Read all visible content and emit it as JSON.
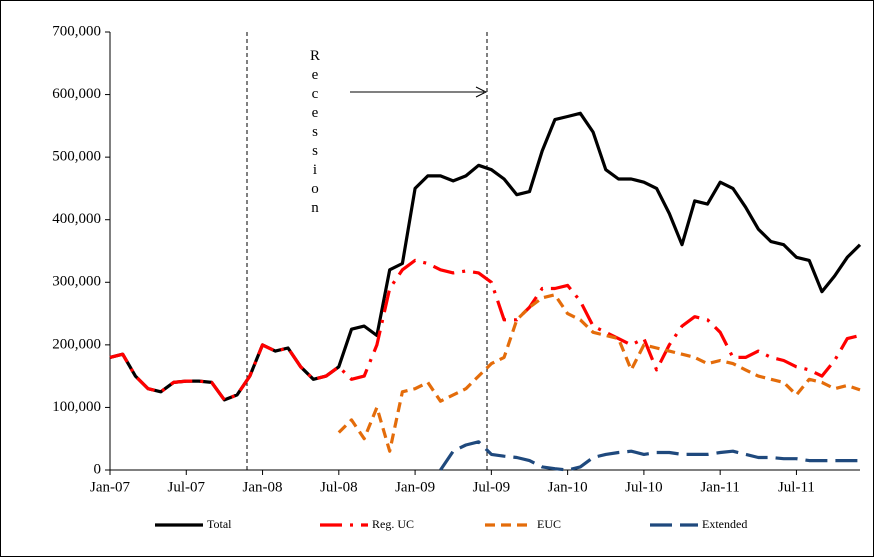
{
  "chart_data": {
    "type": "line",
    "annotation": "Recession",
    "categories": [
      "Jan-07",
      null,
      null,
      null,
      null,
      null,
      "Jul-07",
      null,
      null,
      null,
      null,
      null,
      "Jan-08",
      null,
      null,
      null,
      null,
      null,
      "Jul-08",
      null,
      null,
      null,
      null,
      null,
      "Jan-09",
      null,
      null,
      null,
      null,
      null,
      "Jul-09",
      null,
      null,
      null,
      null,
      null,
      "Jan-10",
      null,
      null,
      null,
      null,
      null,
      "Jul-10",
      null,
      null,
      null,
      null,
      null,
      "Jan-11",
      null,
      null,
      null,
      null,
      null,
      "Jul-11",
      null,
      null,
      null,
      null,
      null
    ],
    "series": [
      {
        "name": "Total",
        "color": "#000000",
        "dash": "solid",
        "values": [
          180,
          185,
          150,
          130,
          125,
          140,
          142,
          142,
          140,
          112,
          120,
          150,
          200,
          190,
          195,
          165,
          145,
          150,
          165,
          225,
          230,
          215,
          320,
          330,
          450,
          470,
          470,
          462,
          470,
          487,
          480,
          465,
          440,
          445,
          510,
          560,
          565,
          570,
          540,
          480,
          465,
          465,
          460,
          450,
          410,
          360,
          430,
          425,
          460,
          450,
          420,
          385,
          365,
          360,
          340,
          335,
          285,
          310,
          340,
          360
        ]
      },
      {
        "name": "Reg. UC",
        "color": "#ff0000",
        "dash": "dashdot",
        "values": [
          180,
          185,
          150,
          130,
          125,
          140,
          142,
          142,
          140,
          112,
          120,
          150,
          200,
          190,
          195,
          165,
          145,
          150,
          165,
          145,
          150,
          200,
          290,
          320,
          335,
          330,
          320,
          315,
          318,
          315,
          300,
          240,
          240,
          260,
          290,
          290,
          295,
          270,
          230,
          220,
          210,
          200,
          210,
          160,
          200,
          230,
          245,
          240,
          220,
          180,
          180,
          190,
          180,
          175,
          165,
          160,
          150,
          175,
          210,
          215
        ]
      },
      {
        "name": "EUC",
        "color": "#e46c0a",
        "dash": "dash",
        "values": [
          null,
          null,
          null,
          null,
          null,
          null,
          null,
          null,
          null,
          null,
          null,
          null,
          null,
          null,
          null,
          null,
          null,
          null,
          60,
          80,
          50,
          100,
          30,
          125,
          130,
          140,
          110,
          120,
          130,
          150,
          170,
          180,
          240,
          260,
          275,
          280,
          250,
          240,
          220,
          215,
          210,
          160,
          200,
          195,
          190,
          185,
          180,
          170,
          175,
          170,
          160,
          150,
          145,
          140,
          120,
          145,
          140,
          130,
          135,
          128
        ]
      },
      {
        "name": "Extended",
        "color": "#1f497d",
        "dash": "longdash",
        "values": [
          null,
          null,
          null,
          null,
          null,
          null,
          null,
          null,
          null,
          null,
          null,
          null,
          null,
          null,
          null,
          null,
          null,
          null,
          null,
          null,
          null,
          null,
          null,
          null,
          null,
          null,
          0,
          30,
          40,
          45,
          25,
          22,
          20,
          15,
          5,
          2,
          0,
          5,
          20,
          25,
          28,
          30,
          25,
          28,
          28,
          25,
          25,
          25,
          28,
          30,
          25,
          20,
          20,
          18,
          18,
          15,
          15,
          15,
          15,
          15
        ]
      }
    ],
    "ylim": [
      0,
      700
    ],
    "yticks": [
      {
        "value": 0,
        "label": "0"
      },
      {
        "value": 100,
        "label": "100,000"
      },
      {
        "value": 200,
        "label": "200,000"
      },
      {
        "value": 300,
        "label": "300,000"
      },
      {
        "value": 400,
        "label": "400,000"
      },
      {
        "value": 500,
        "label": "500,000"
      },
      {
        "value": 600,
        "label": "600,000"
      },
      {
        "value": 700,
        "label": "700,000"
      }
    ],
    "legend": "bottom"
  }
}
